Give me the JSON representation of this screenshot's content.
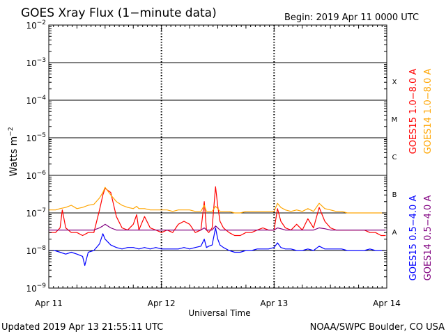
{
  "chart_data": {
    "type": "line",
    "title": "GOES Xray Flux (1−minute data)",
    "begin_label": "Begin:  2019 Apr 11 0000 UTC",
    "xlabel": "Universal Time",
    "ylabel": "Watts m",
    "ylabel_exp": "−2",
    "x_unit": "days since 2019 Apr 11 0000 UTC",
    "xlim": [
      0,
      3
    ],
    "ylim": [
      1e-09,
      0.01
    ],
    "yscale": "log",
    "y_ticks": [
      {
        "value": 0.01,
        "base": "10",
        "exp": "−2"
      },
      {
        "value": 0.001,
        "base": "10",
        "exp": "−3"
      },
      {
        "value": 0.0001,
        "base": "10",
        "exp": "−4"
      },
      {
        "value": 1e-05,
        "base": "10",
        "exp": "−5"
      },
      {
        "value": 1e-06,
        "base": "10",
        "exp": "−6"
      },
      {
        "value": 1e-07,
        "base": "10",
        "exp": "−7"
      },
      {
        "value": 1e-08,
        "base": "10",
        "exp": "−8"
      },
      {
        "value": 1e-09,
        "base": "10",
        "exp": "−9"
      }
    ],
    "x_ticks": [
      {
        "value": 0,
        "label": "Apr 11"
      },
      {
        "value": 1,
        "label": "Apr 12"
      },
      {
        "value": 2,
        "label": "Apr 13"
      },
      {
        "value": 3,
        "label": "Apr 14"
      }
    ],
    "flare_classes": [
      {
        "label": "X",
        "min": 0.0001,
        "max": 0.001
      },
      {
        "label": "M",
        "min": 1e-05,
        "max": 0.0001
      },
      {
        "label": "C",
        "min": 1e-06,
        "max": 1e-05
      },
      {
        "label": "B",
        "min": 1e-07,
        "max": 1e-06
      },
      {
        "label": "A",
        "min": 1e-08,
        "max": 1e-07
      }
    ],
    "series": [
      {
        "name": "GOES15 1.0−8.0 A",
        "color": "#ff0000",
        "x": [
          0,
          0.06,
          0.1,
          0.12,
          0.15,
          0.2,
          0.25,
          0.3,
          0.35,
          0.4,
          0.45,
          0.48,
          0.5,
          0.55,
          0.6,
          0.65,
          0.7,
          0.75,
          0.78,
          0.8,
          0.85,
          0.9,
          0.95,
          1.0,
          1.05,
          1.1,
          1.15,
          1.2,
          1.25,
          1.3,
          1.35,
          1.38,
          1.4,
          1.42,
          1.45,
          1.48,
          1.5,
          1.52,
          1.55,
          1.6,
          1.65,
          1.7,
          1.75,
          1.8,
          1.85,
          1.9,
          1.95,
          2.0,
          2.03,
          2.06,
          2.1,
          2.15,
          2.2,
          2.25,
          2.3,
          2.35,
          2.4,
          2.45,
          2.5,
          2.55,
          2.6,
          2.65,
          2.7,
          2.75,
          2.8,
          2.85,
          2.9,
          2.95,
          2.99
        ],
        "y": [
          3e-08,
          3e-08,
          4e-08,
          1.2e-07,
          4e-08,
          3e-08,
          3e-08,
          2.5e-08,
          3e-08,
          3e-08,
          1.2e-07,
          3e-07,
          4.5e-07,
          3.5e-07,
          8e-08,
          4e-08,
          3.5e-08,
          5e-08,
          9e-08,
          3.5e-08,
          8e-08,
          4e-08,
          3.5e-08,
          3e-08,
          3.5e-08,
          3e-08,
          5e-08,
          6e-08,
          5e-08,
          3e-08,
          3.5e-08,
          2e-07,
          3.5e-08,
          3e-08,
          4e-08,
          5e-07,
          1.5e-07,
          6e-08,
          4e-08,
          3e-08,
          2.5e-08,
          2.5e-08,
          3e-08,
          3e-08,
          3.5e-08,
          4e-08,
          3.5e-08,
          3.5e-08,
          1.3e-07,
          6e-08,
          4e-08,
          3.5e-08,
          5e-08,
          3.5e-08,
          7e-08,
          4e-08,
          1.4e-07,
          6e-08,
          4e-08,
          3.5e-08,
          3.5e-08,
          3.5e-08,
          3.5e-08,
          3.5e-08,
          3.5e-08,
          3e-08,
          3e-08,
          2.5e-08,
          2.5e-08
        ]
      },
      {
        "name": "GOES14 1.0−8.0 A",
        "color": "#ffa500",
        "x": [
          0,
          0.06,
          0.1,
          0.15,
          0.2,
          0.25,
          0.3,
          0.35,
          0.4,
          0.45,
          0.48,
          0.5,
          0.55,
          0.6,
          0.65,
          0.7,
          0.75,
          0.78,
          0.8,
          0.85,
          0.9,
          0.95,
          1.0,
          1.05,
          1.1,
          1.15,
          1.2,
          1.25,
          1.3,
          1.35,
          1.38,
          1.4,
          1.42,
          1.45,
          1.48,
          1.5,
          1.52,
          1.55,
          1.6,
          1.65,
          1.7,
          1.75,
          1.8,
          1.85,
          1.9,
          1.95,
          2.0,
          2.03,
          2.06,
          2.1,
          2.15,
          2.2,
          2.25,
          2.3,
          2.35,
          2.4,
          2.45,
          2.5,
          2.55,
          2.6,
          2.65,
          2.7,
          2.75,
          2.8,
          2.85,
          2.9,
          2.95,
          2.99
        ],
        "y": [
          1.2e-07,
          1.2e-07,
          1.3e-07,
          1.4e-07,
          1.6e-07,
          1.3e-07,
          1.4e-07,
          1.6e-07,
          1.7e-07,
          2.5e-07,
          3.5e-07,
          4.8e-07,
          3e-07,
          2e-07,
          1.6e-07,
          1.4e-07,
          1.3e-07,
          1.5e-07,
          1.3e-07,
          1.3e-07,
          1.2e-07,
          1.2e-07,
          1.2e-07,
          1.2e-07,
          1.1e-07,
          1.2e-07,
          1.2e-07,
          1.2e-07,
          1.1e-07,
          1.1e-07,
          1.6e-07,
          1.1e-07,
          1.1e-07,
          1.1e-07,
          1.5e-07,
          1.3e-07,
          1.1e-07,
          1.1e-07,
          1.1e-07,
          1e-07,
          1e-07,
          1.1e-07,
          1.1e-07,
          1.1e-07,
          1.1e-07,
          1.1e-07,
          1.1e-07,
          1.8e-07,
          1.4e-07,
          1.2e-07,
          1.1e-07,
          1.2e-07,
          1.1e-07,
          1.3e-07,
          1.1e-07,
          1.8e-07,
          1.3e-07,
          1.2e-07,
          1.1e-07,
          1.1e-07,
          1e-07,
          1e-07,
          1e-07,
          1e-07,
          1e-07,
          1e-07,
          1e-07,
          1e-07
        ]
      },
      {
        "name": "GOES15 0.5−4.0 A",
        "color": "#0000ff",
        "x": [
          0,
          0.05,
          0.1,
          0.15,
          0.2,
          0.25,
          0.3,
          0.32,
          0.35,
          0.4,
          0.45,
          0.48,
          0.5,
          0.55,
          0.6,
          0.65,
          0.7,
          0.75,
          0.8,
          0.85,
          0.9,
          0.95,
          1.0,
          1.05,
          1.1,
          1.15,
          1.2,
          1.25,
          1.3,
          1.35,
          1.38,
          1.4,
          1.42,
          1.45,
          1.48,
          1.5,
          1.52,
          1.55,
          1.6,
          1.65,
          1.7,
          1.75,
          1.8,
          1.85,
          1.9,
          1.95,
          2.0,
          2.03,
          2.06,
          2.1,
          2.15,
          2.2,
          2.25,
          2.3,
          2.35,
          2.4,
          2.45,
          2.5,
          2.55,
          2.6,
          2.65,
          2.7,
          2.75,
          2.8,
          2.85,
          2.9,
          2.95,
          2.99
        ],
        "y": [
          1e-08,
          1e-08,
          9e-09,
          8e-09,
          9e-09,
          8e-09,
          7e-09,
          4e-09,
          9e-09,
          1e-08,
          1.5e-08,
          2.8e-08,
          2e-08,
          1.4e-08,
          1.2e-08,
          1.1e-08,
          1.2e-08,
          1.2e-08,
          1.1e-08,
          1.2e-08,
          1.1e-08,
          1.2e-08,
          1.1e-08,
          1.1e-08,
          1.1e-08,
          1.1e-08,
          1.2e-08,
          1.1e-08,
          1.2e-08,
          1.3e-08,
          2e-08,
          1.2e-08,
          1.3e-08,
          1.4e-08,
          4e-08,
          2e-08,
          1.4e-08,
          1.2e-08,
          1e-08,
          9e-09,
          9e-09,
          1e-08,
          1e-08,
          1.1e-08,
          1.1e-08,
          1.1e-08,
          1.2e-08,
          1.6e-08,
          1.2e-08,
          1.1e-08,
          1.1e-08,
          1e-08,
          1e-08,
          1.1e-08,
          1e-08,
          1.3e-08,
          1.1e-08,
          1.1e-08,
          1.1e-08,
          1.1e-08,
          1e-08,
          1e-08,
          1e-08,
          1e-08,
          1.1e-08,
          1e-08,
          1e-08,
          1e-08
        ]
      },
      {
        "name": "GOES14 0.5−4.0 A",
        "color": "#800080",
        "x": [
          0,
          0.05,
          0.1,
          0.15,
          0.2,
          0.25,
          0.3,
          0.35,
          0.4,
          0.45,
          0.48,
          0.5,
          0.55,
          0.6,
          0.65,
          0.7,
          0.75,
          0.8,
          0.85,
          0.9,
          0.95,
          1.0,
          1.05,
          1.1,
          1.15,
          1.2,
          1.25,
          1.3,
          1.35,
          1.38,
          1.4,
          1.42,
          1.45,
          1.48,
          1.5,
          1.52,
          1.55,
          1.6,
          1.65,
          1.7,
          1.75,
          1.8,
          1.85,
          1.9,
          1.95,
          2.0,
          2.03,
          2.06,
          2.1,
          2.15,
          2.2,
          2.25,
          2.3,
          2.35,
          2.4,
          2.45,
          2.5,
          2.55,
          2.6,
          2.65,
          2.7,
          2.75,
          2.8,
          2.85,
          2.9,
          2.95,
          2.99
        ],
        "y": [
          3.5e-08,
          3.5e-08,
          3.5e-08,
          3.5e-08,
          3.5e-08,
          3.5e-08,
          3.5e-08,
          3.5e-08,
          3.5e-08,
          4e-08,
          4.5e-08,
          5e-08,
          4e-08,
          3.5e-08,
          3.5e-08,
          3.5e-08,
          3.5e-08,
          3.5e-08,
          3.5e-08,
          3.5e-08,
          3.5e-08,
          3.5e-08,
          3.5e-08,
          3.5e-08,
          3.5e-08,
          3.5e-08,
          3.5e-08,
          3.5e-08,
          3.5e-08,
          4e-08,
          3.5e-08,
          3.5e-08,
          3.5e-08,
          4.5e-08,
          4e-08,
          3.5e-08,
          3.5e-08,
          3.5e-08,
          3.5e-08,
          3.5e-08,
          3.5e-08,
          3.5e-08,
          3.5e-08,
          3.5e-08,
          3.5e-08,
          3.5e-08,
          4e-08,
          3.8e-08,
          3.5e-08,
          3.5e-08,
          3.5e-08,
          3.5e-08,
          3.5e-08,
          3.5e-08,
          4e-08,
          3.8e-08,
          3.5e-08,
          3.5e-08,
          3.5e-08,
          3.5e-08,
          3.5e-08,
          3.5e-08,
          3.5e-08,
          3.5e-08,
          3.5e-08,
          3.5e-08,
          3.5e-08
        ]
      }
    ]
  },
  "footer": {
    "updated": "Updated 2019 Apr 13 21:55:11 UTC",
    "credit": "NOAA/SWPC Boulder, CO USA"
  }
}
